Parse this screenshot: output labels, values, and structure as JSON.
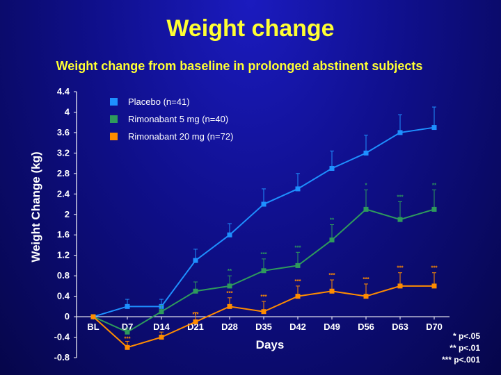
{
  "title": "Weight change",
  "subtitle": "Weight change from baseline in prolonged abstinent subjects",
  "significance_notes": [
    "* p<.05",
    "** p<.01",
    "*** p<.001"
  ],
  "chart_data": {
    "type": "line",
    "xlabel": "Days",
    "ylabel": "Weight Change (kg)",
    "categories": [
      "BL",
      "D7",
      "D14",
      "D21",
      "D28",
      "D35",
      "D42",
      "D49",
      "D56",
      "D63",
      "D70"
    ],
    "y_ticks": [
      "4.4",
      "4",
      "3.6",
      "3.2",
      "2.8",
      "2.4",
      "2",
      "1.6",
      "1.2",
      "0.8",
      "0.4",
      "0",
      "-0.4",
      "-0.8"
    ],
    "ylim": [
      -0.8,
      4.4
    ],
    "legend_position": "top-left",
    "grid": false,
    "series": [
      {
        "name": "Placebo (n=41)",
        "color": "#1e90ff",
        "values": [
          0,
          0.2,
          0.2,
          1.1,
          1.6,
          2.2,
          2.5,
          2.9,
          3.2,
          3.6,
          3.7
        ],
        "error_upper": [
          0,
          0.34,
          0.34,
          1.32,
          1.82,
          2.5,
          2.8,
          3.24,
          3.55,
          3.95,
          4.1
        ],
        "significance": [
          "",
          "",
          "",
          "",
          "",
          "",
          "",
          "",
          "",
          "",
          ""
        ]
      },
      {
        "name": "Rimonabant 5 mg (n=40)",
        "color": "#2e9a5c",
        "values": [
          0,
          -0.3,
          0.1,
          0.5,
          0.6,
          0.9,
          1.0,
          1.5,
          2.1,
          1.9,
          2.1
        ],
        "error_upper": [
          0,
          -0.22,
          0.22,
          0.68,
          0.8,
          1.13,
          1.26,
          1.8,
          2.48,
          2.25,
          2.48
        ],
        "significance": [
          "",
          "",
          "",
          "",
          "**",
          "***",
          "***",
          "**",
          "*",
          "***",
          "**"
        ]
      },
      {
        "name": "Rimonabant 20 mg (n=72)",
        "color": "#ff8c00",
        "values": [
          0,
          -0.6,
          -0.4,
          -0.1,
          0.2,
          0.1,
          0.4,
          0.5,
          0.4,
          0.6,
          0.6
        ],
        "error_upper": [
          0,
          -0.48,
          -0.3,
          0.08,
          0.37,
          0.3,
          0.6,
          0.72,
          0.64,
          0.86,
          0.86
        ],
        "significance": [
          "",
          "***",
          "",
          "***",
          "***",
          "***",
          "***",
          "***",
          "***",
          "***",
          "***"
        ]
      }
    ]
  }
}
